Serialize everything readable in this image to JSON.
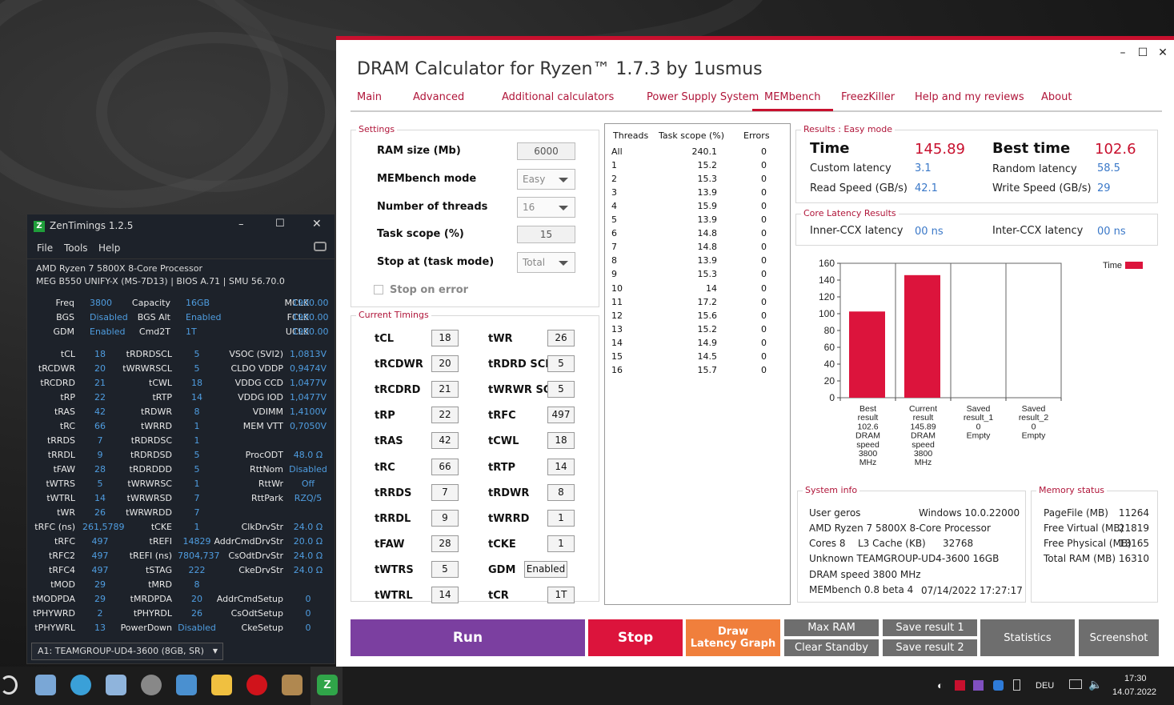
{
  "dram": {
    "title": "DRAM Calculator for Ryzen™ 1.7.3 by 1usmus",
    "window_controls": [
      "–",
      "☐",
      "✕"
    ],
    "tabs": [
      "Main",
      "Advanced",
      "Additional calculators",
      "Power Supply System",
      "MEMbench",
      "FreezKiller",
      "Help and my reviews",
      "About"
    ],
    "settings": {
      "title": "Settings",
      "ram_size_label": "RAM size (Mb)",
      "ram_size": "6000",
      "mode_label": "MEMbench mode",
      "mode": "Easy",
      "threads_label": "Number of threads",
      "threads": "16",
      "task_scope_label": "Task scope (%)",
      "task_scope": "15",
      "stop_at_label": "Stop at (task mode)",
      "stop_at": "Total",
      "stop_on_error": "Stop on error"
    },
    "current_timings": {
      "title": "Current Timings",
      "left": [
        [
          "tCL",
          "18"
        ],
        [
          "tRCDWR",
          "20"
        ],
        [
          "tRCDRD",
          "21"
        ],
        [
          "tRP",
          "22"
        ],
        [
          "tRAS",
          "42"
        ],
        [
          "tRC",
          "66"
        ],
        [
          "tRRDS",
          "7"
        ],
        [
          "tRRDL",
          "9"
        ],
        [
          "tFAW",
          "28"
        ],
        [
          "tWTRS",
          "5"
        ],
        [
          "tWTRL",
          "14"
        ]
      ],
      "right": [
        [
          "tWR",
          "26"
        ],
        [
          "tRDRD SCL",
          "5"
        ],
        [
          "tWRWR SCL",
          "5"
        ],
        [
          "tRFC",
          "497"
        ],
        [
          "tCWL",
          "18"
        ],
        [
          "tRTP",
          "14"
        ],
        [
          "tRDWR",
          "8"
        ],
        [
          "tWRRD",
          "1"
        ],
        [
          "tCKE",
          "1"
        ],
        [
          "GDM",
          "Enabled"
        ],
        [
          "tCR",
          "1T"
        ]
      ]
    },
    "threads_table": {
      "headers": [
        "Threads",
        "Task scope (%)",
        "Errors"
      ],
      "rows": [
        [
          "All",
          "240.1",
          "0"
        ],
        [
          "1",
          "15.2",
          "0"
        ],
        [
          "2",
          "15.3",
          "0"
        ],
        [
          "3",
          "13.9",
          "0"
        ],
        [
          "4",
          "15.9",
          "0"
        ],
        [
          "5",
          "13.9",
          "0"
        ],
        [
          "6",
          "14.8",
          "0"
        ],
        [
          "7",
          "14.8",
          "0"
        ],
        [
          "8",
          "13.9",
          "0"
        ],
        [
          "9",
          "15.3",
          "0"
        ],
        [
          "10",
          "14",
          "0"
        ],
        [
          "11",
          "17.2",
          "0"
        ],
        [
          "12",
          "15.6",
          "0"
        ],
        [
          "13",
          "15.2",
          "0"
        ],
        [
          "14",
          "14.9",
          "0"
        ],
        [
          "15",
          "14.5",
          "0"
        ],
        [
          "16",
          "15.7",
          "0"
        ]
      ]
    },
    "results": {
      "title": "Results : Easy mode",
      "time_label": "Time",
      "time": "145.89",
      "best_label": "Best time",
      "best": "102.6",
      "custom_lat_label": "Custom latency",
      "custom_lat": "3.1",
      "random_lat_label": "Random latency",
      "random_lat": "58.5",
      "read_label": "Read Speed (GB/s)",
      "read": "42.1",
      "write_label": "Write Speed (GB/s)",
      "write": "29"
    },
    "core_latency": {
      "title": "Core Latency Results",
      "inner_label": "Inner-CCX latency",
      "inner": "00 ns",
      "inter_label": "Inter-CCX latency",
      "inter": "00 ns"
    },
    "system_info": {
      "title": "System info",
      "user": "User geros",
      "os": "Windows 10.0.22000",
      "cpu": "AMD Ryzen 7 5800X 8-Core Processor",
      "cores": "Cores 8",
      "l3_label": "L3 Cache (KB)",
      "l3": "32768",
      "mem": "Unknown TEAMGROUP-UD4-3600 16GB",
      "dram_speed": "DRAM speed 3800 MHz",
      "membench": "MEMbench 0.8 beta 4",
      "date": "07/14/2022 17:27:17"
    },
    "memory_status": {
      "title": "Memory status",
      "rows": [
        [
          "PageFile (MB)",
          "11264"
        ],
        [
          "Free Virtual (MB)",
          "21819"
        ],
        [
          "Free Physical (MB)",
          "13165"
        ],
        [
          "Total RAM (MB)",
          "16310"
        ]
      ]
    },
    "buttons": {
      "run": "Run",
      "stop": "Stop",
      "draw1": "Draw",
      "draw2": "Latency Graph",
      "max_ram": "Max RAM",
      "clear_standby": "Clear Standby",
      "save1": "Save result 1",
      "save2": "Save result 2",
      "statistics": "Statistics",
      "screenshot": "Screenshot"
    },
    "colors": {
      "accent": "#c8102e",
      "run": "#7b3fa0",
      "stop": "#dc143c",
      "draw": "#f07f3c",
      "grey": "#6e6e6e",
      "bar": "#dc143c"
    }
  },
  "chart_data": {
    "type": "bar",
    "categories": [
      "Best result 102.6 DRAM speed 3800 MHz",
      "Current result 145.89 DRAM speed 3800 MHz",
      "Saved result_1 0 Empty",
      "Saved result_2 0 Empty"
    ],
    "category_lines": [
      [
        "Best",
        "result",
        "102.6",
        "DRAM",
        "speed",
        "3800",
        "MHz"
      ],
      [
        "Current",
        "result",
        "145.89",
        "DRAM",
        "speed",
        "3800",
        "MHz"
      ],
      [
        "Saved",
        "result_1",
        "0",
        "Empty"
      ],
      [
        "Saved",
        "result_2",
        "0",
        "Empty"
      ]
    ],
    "series": [
      {
        "name": "Time",
        "values": [
          102.6,
          145.89,
          0,
          0
        ]
      }
    ],
    "yticks": [
      "160",
      "140",
      "120",
      "100",
      "80",
      "60",
      "40",
      "20",
      "0"
    ],
    "ylim": [
      0,
      160
    ],
    "grid": true,
    "legend": "top-right"
  },
  "zen": {
    "title": "ZenTimings 1.2.5",
    "menu": [
      "File",
      "Tools",
      "Help"
    ],
    "cpu": "AMD Ryzen 7 5800X 8-Core Processor",
    "board": "MEG B550 UNIFY-X (MS-7D13) | BIOS A.71 | SMU 56.70.0",
    "top": [
      [
        "Freq",
        "3800",
        "Capacity",
        "16GB",
        "MCLK",
        "1900.00"
      ],
      [
        "BGS",
        "Disabled",
        "BGS Alt",
        "Enabled",
        "FCLK",
        "1900.00"
      ],
      [
        "GDM",
        "Enabled",
        "Cmd2T",
        "1T",
        "UCLK",
        "1900.00"
      ]
    ],
    "rows": [
      [
        "tCL",
        "18",
        "tRDRDSCL",
        "5",
        "VSOC (SVI2)",
        "1,0813V"
      ],
      [
        "tRCDWR",
        "20",
        "tWRWRSCL",
        "5",
        "CLDO VDDP",
        "0,9474V"
      ],
      [
        "tRCDRD",
        "21",
        "tCWL",
        "18",
        "VDDG CCD",
        "1,0477V"
      ],
      [
        "tRP",
        "22",
        "tRTP",
        "14",
        "VDDG IOD",
        "1,0477V"
      ],
      [
        "tRAS",
        "42",
        "tRDWR",
        "8",
        "VDIMM",
        "1,4100V"
      ],
      [
        "tRC",
        "66",
        "tWRRD",
        "1",
        "MEM VTT",
        "0,7050V"
      ],
      [
        "tRRDS",
        "7",
        "tRDRDSC",
        "1",
        "",
        ""
      ],
      [
        "tRRDL",
        "9",
        "tRDRDSD",
        "5",
        "ProcODT",
        "48.0 Ω"
      ],
      [
        "tFAW",
        "28",
        "tRDRDDD",
        "5",
        "RttNom",
        "Disabled"
      ],
      [
        "tWTRS",
        "5",
        "tWRWRSC",
        "1",
        "RttWr",
        "Off"
      ],
      [
        "tWTRL",
        "14",
        "tWRWRSD",
        "7",
        "RttPark",
        "RZQ/5"
      ],
      [
        "tWR",
        "26",
        "tWRWRDD",
        "7",
        "",
        ""
      ],
      [
        "tRFC (ns)",
        "261,5789",
        "tCKE",
        "1",
        "ClkDrvStr",
        "24.0 Ω"
      ],
      [
        "tRFC",
        "497",
        "tREFI",
        "14829",
        "AddrCmdDrvStr",
        "20.0 Ω"
      ],
      [
        "tRFC2",
        "497",
        "tREFI (ns)",
        "7804,737",
        "CsOdtDrvStr",
        "24.0 Ω"
      ],
      [
        "tRFC4",
        "497",
        "tSTAG",
        "222",
        "CkeDrvStr",
        "24.0 Ω"
      ],
      [
        "tMOD",
        "29",
        "tMRD",
        "8",
        "",
        ""
      ],
      [
        "tMODPDA",
        "29",
        "tMRDPDA",
        "20",
        "AddrCmdSetup",
        "0"
      ],
      [
        "tPHYWRD",
        "2",
        "tPHYRDL",
        "26",
        "CsOdtSetup",
        "0"
      ],
      [
        "tPHYWRL",
        "13",
        "PowerDown",
        "Disabled",
        "CkeSetup",
        "0"
      ]
    ],
    "dimm": "A1: TEAMGROUP-UD4-3600 (8GB, SR)"
  },
  "taskbar": {
    "lang": "DEU",
    "time": "17:30",
    "date": "14.07.2022"
  }
}
